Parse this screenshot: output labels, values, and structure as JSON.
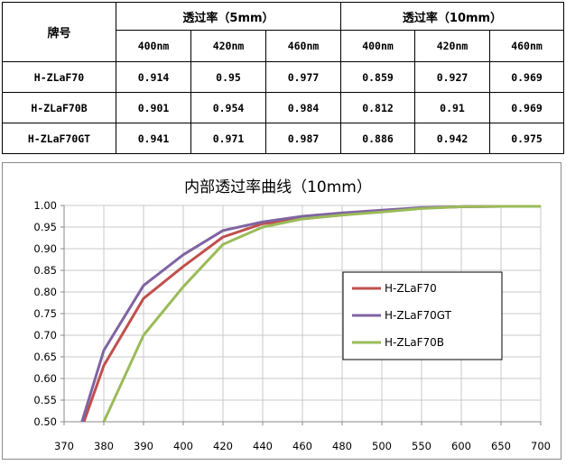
{
  "table": {
    "brand_header": "牌号",
    "group_5mm": "透过率（5mm）",
    "group_10mm": "透过率（10mm）",
    "wavelengths": [
      "400nm",
      "420nm",
      "460nm",
      "400nm",
      "420nm",
      "460nm"
    ],
    "rows": [
      {
        "brand": "H-ZLaF70",
        "values": [
          "0.914",
          "0.95",
          "0.977",
          "0.859",
          "0.927",
          "0.969"
        ]
      },
      {
        "brand": "H-ZLaF70B",
        "values": [
          "0.901",
          "0.954",
          "0.984",
          "0.812",
          "0.91",
          "0.969"
        ]
      },
      {
        "brand": "H-ZLaF70GT",
        "values": [
          "0.941",
          "0.971",
          "0.987",
          "0.886",
          "0.942",
          "0.975"
        ]
      }
    ]
  },
  "chart_data": {
    "type": "line",
    "title": "内部透过率曲线（10mm）",
    "xlabel": "",
    "ylabel": "",
    "x": [
      370,
      380,
      390,
      400,
      420,
      440,
      460,
      480,
      500,
      550,
      600,
      650,
      700
    ],
    "x_categorical": true,
    "ylim": [
      0.5,
      1.0
    ],
    "y_ticks": [
      "0.50",
      "0.55",
      "0.60",
      "0.65",
      "0.70",
      "0.75",
      "0.80",
      "0.85",
      "0.90",
      "0.95",
      "1.00"
    ],
    "grid": true,
    "legend_position": "right-middle",
    "series": [
      {
        "name": "H-ZLaF70",
        "color": "#c0504d",
        "points": [
          [
            375,
            0.5
          ],
          [
            380,
            0.63
          ],
          [
            390,
            0.785
          ],
          [
            400,
            0.859
          ],
          [
            420,
            0.927
          ],
          [
            440,
            0.958
          ],
          [
            460,
            0.969
          ],
          [
            480,
            0.978
          ],
          [
            500,
            0.986
          ],
          [
            550,
            0.994
          ],
          [
            600,
            0.997
          ],
          [
            650,
            0.998
          ],
          [
            700,
            0.998
          ]
        ]
      },
      {
        "name": "H-ZLaF70GT",
        "color": "#8064a2",
        "points": [
          [
            374.5,
            0.5
          ],
          [
            380,
            0.665
          ],
          [
            390,
            0.815
          ],
          [
            400,
            0.886
          ],
          [
            420,
            0.942
          ],
          [
            440,
            0.962
          ],
          [
            460,
            0.975
          ],
          [
            480,
            0.983
          ],
          [
            500,
            0.989
          ],
          [
            550,
            0.995
          ],
          [
            600,
            0.997
          ],
          [
            650,
            0.998
          ],
          [
            700,
            0.998
          ]
        ]
      },
      {
        "name": "H-ZLaF70B",
        "color": "#9bbb59",
        "points": [
          [
            380,
            0.5
          ],
          [
            390,
            0.7
          ],
          [
            400,
            0.812
          ],
          [
            420,
            0.91
          ],
          [
            440,
            0.95
          ],
          [
            460,
            0.969
          ],
          [
            480,
            0.978
          ],
          [
            500,
            0.985
          ],
          [
            550,
            0.993
          ],
          [
            600,
            0.997
          ],
          [
            650,
            0.998
          ],
          [
            700,
            0.998
          ]
        ]
      }
    ]
  }
}
